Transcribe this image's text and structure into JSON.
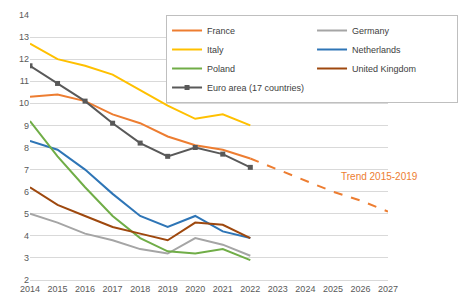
{
  "chart_data": {
    "type": "line",
    "x": [
      2014,
      2015,
      2016,
      2017,
      2018,
      2019,
      2020,
      2021,
      2022,
      2023,
      2024,
      2025,
      2026,
      2027
    ],
    "xlim": [
      2014,
      2027
    ],
    "xticks": [
      2014,
      2015,
      2016,
      2017,
      2018,
      2019,
      2020,
      2021,
      2022,
      2023,
      2024,
      2025,
      2026,
      2027
    ],
    "ylim": [
      2,
      14
    ],
    "yticks": [
      2,
      3,
      4,
      5,
      6,
      7,
      8,
      9,
      10,
      11,
      12,
      13,
      14
    ],
    "grid": true,
    "legend": "upper right",
    "series": [
      {
        "name": "France",
        "color": "#ED7D31",
        "values": [
          10.3,
          10.4,
          10.1,
          9.5,
          9.1,
          8.5,
          8.1,
          7.9,
          7.5,
          null,
          null,
          null,
          null,
          null
        ]
      },
      {
        "name": "Germany",
        "color": "#A5A5A5",
        "values": [
          5.0,
          4.6,
          4.1,
          3.8,
          3.4,
          3.2,
          3.9,
          3.6,
          3.1,
          null,
          null,
          null,
          null,
          null
        ]
      },
      {
        "name": "Italy",
        "color": "#FFC000",
        "values": [
          12.7,
          12.0,
          11.7,
          11.3,
          10.6,
          9.9,
          9.3,
          9.5,
          9.0,
          null,
          null,
          null,
          null,
          null
        ]
      },
      {
        "name": "Netherlands",
        "color": "#2E75B6",
        "values": [
          8.3,
          7.9,
          7.0,
          5.9,
          4.9,
          4.4,
          4.9,
          4.2,
          3.9,
          null,
          null,
          null,
          null,
          null
        ]
      },
      {
        "name": "Poland",
        "color": "#70AD47",
        "values": [
          9.2,
          7.6,
          6.2,
          4.9,
          3.9,
          3.3,
          3.2,
          3.4,
          2.9,
          null,
          null,
          null,
          null,
          null
        ]
      },
      {
        "name": "United Kingdom",
        "color": "#9E480E",
        "values": [
          6.2,
          5.4,
          4.9,
          4.4,
          4.1,
          3.8,
          4.6,
          4.5,
          3.9,
          null,
          null,
          null,
          null,
          null
        ]
      },
      {
        "name": "Euro area (17 countries)",
        "color": "#595959",
        "marker": "square",
        "values": [
          11.7,
          10.9,
          10.1,
          9.1,
          8.2,
          7.6,
          8.0,
          7.7,
          7.1,
          null,
          null,
          null,
          null,
          null
        ]
      },
      {
        "name": "Trend 2015-2019",
        "color": "#ED7D31",
        "line_style": "dashed",
        "values": [
          null,
          null,
          null,
          null,
          null,
          null,
          null,
          null,
          7.5,
          7.0,
          6.5,
          6.0,
          5.6,
          5.1
        ]
      }
    ]
  }
}
